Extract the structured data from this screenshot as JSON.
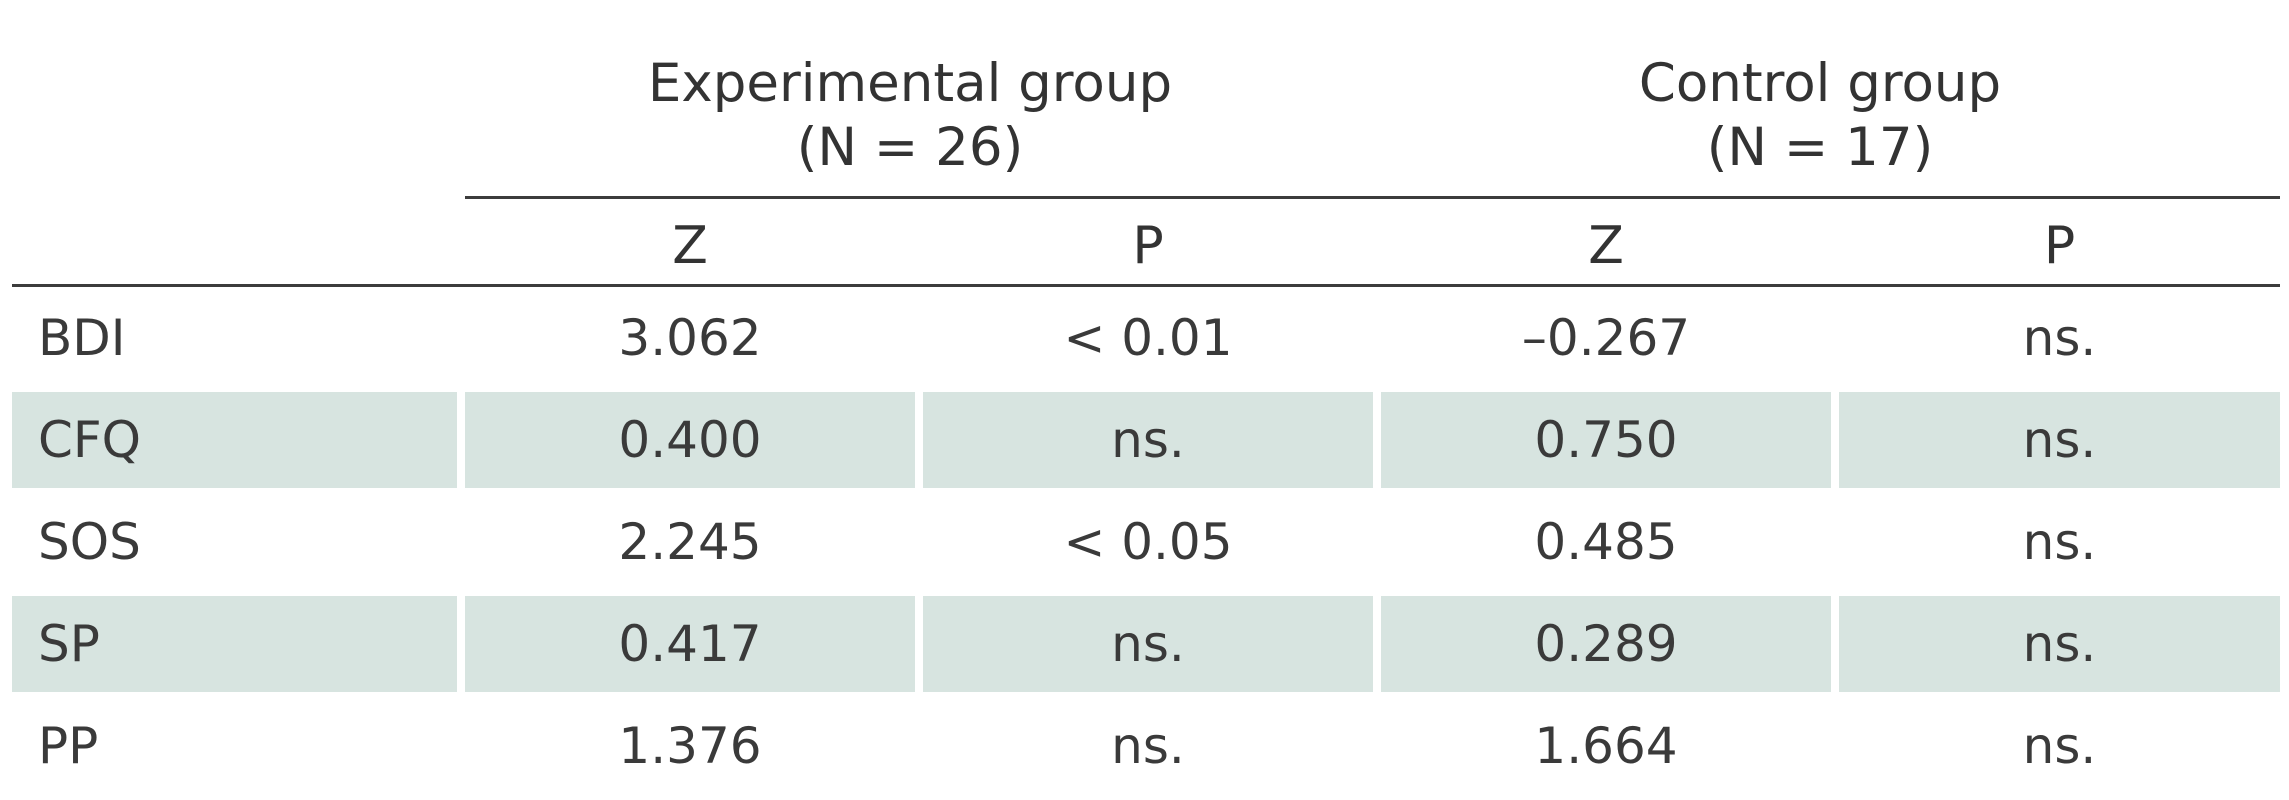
{
  "header": {
    "groups": [
      {
        "title": "Experimental group",
        "n": "(N = 26)"
      },
      {
        "title": "Control group",
        "n": "(N = 17)"
      }
    ],
    "columns": [
      "Z",
      "P",
      "Z",
      "P"
    ]
  },
  "rows": [
    {
      "label": "BDI",
      "values": [
        "3.062",
        "< 0.01",
        "–0.267",
        "ns."
      ]
    },
    {
      "label": "CFQ",
      "values": [
        "0.400",
        "ns.",
        "0.750",
        "ns."
      ]
    },
    {
      "label": "SOS",
      "values": [
        "2.245",
        "< 0.05",
        "0.485",
        "ns."
      ]
    },
    {
      "label": "SP",
      "values": [
        "0.417",
        "ns.",
        "0.289",
        "ns."
      ]
    },
    {
      "label": "PP",
      "values": [
        "1.376",
        "ns.",
        "1.664",
        "ns."
      ]
    }
  ]
}
